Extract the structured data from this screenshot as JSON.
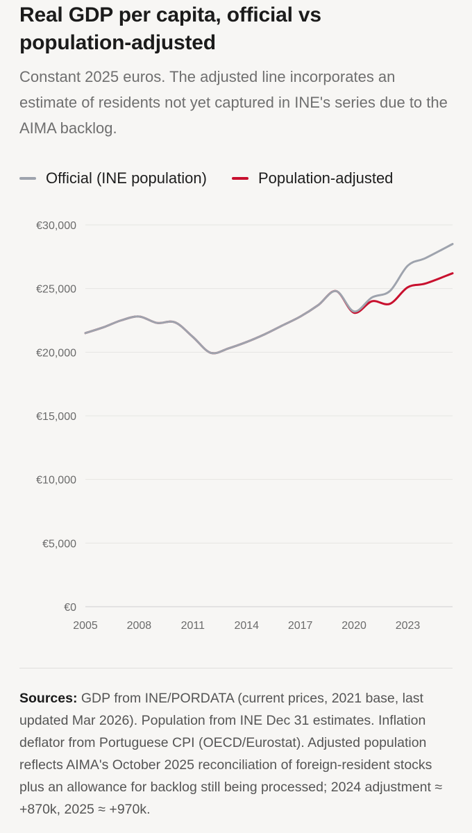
{
  "header": {
    "title": "Real GDP per capita, official vs population-adjusted",
    "subtitle": "Constant 2025 euros. The adjusted line incorporates an estimate of residents not yet captured in INE's series due to the AIMA backlog."
  },
  "legend": {
    "items": [
      {
        "label": "Official (INE population)",
        "color": "#9ea3ad"
      },
      {
        "label": "Population-adjusted",
        "color": "#c8102e"
      }
    ]
  },
  "chart_data": {
    "type": "line",
    "title": "Real GDP per capita, official vs population-adjusted",
    "xlabel": "",
    "ylabel": "",
    "xlim": [
      2005,
      2025.5
    ],
    "ylim": [
      0,
      30000
    ],
    "grid": true,
    "legend_position": "top-left",
    "x_ticks": [
      2005,
      2008,
      2011,
      2014,
      2017,
      2020,
      2023
    ],
    "y_ticks": [
      0,
      5000,
      10000,
      15000,
      20000,
      25000,
      30000
    ],
    "y_tick_labels": [
      "€0",
      "€5,000",
      "€10,000",
      "€15,000",
      "€20,000",
      "€25,000",
      "€30,000"
    ],
    "series": [
      {
        "name": "Official (INE population)",
        "color": "#9ea3ad",
        "x": [
          2005,
          2006,
          2007,
          2008,
          2009,
          2010,
          2011,
          2012,
          2013,
          2014,
          2015,
          2016,
          2017,
          2018,
          2019,
          2020,
          2021,
          2022,
          2023,
          2024,
          2025.5
        ],
        "values": [
          21500,
          21950,
          22500,
          22800,
          22300,
          22350,
          21200,
          19950,
          20300,
          20800,
          21400,
          22100,
          22800,
          23700,
          24800,
          23200,
          24300,
          24800,
          26800,
          27400,
          28500
        ]
      },
      {
        "name": "Population-adjusted",
        "color": "#c8102e",
        "x": [
          2005,
          2006,
          2007,
          2008,
          2009,
          2010,
          2011,
          2012,
          2013,
          2014,
          2015,
          2016,
          2017,
          2018,
          2019,
          2020,
          2021,
          2022,
          2023,
          2024,
          2025.5
        ],
        "values": [
          21500,
          21950,
          22500,
          22800,
          22300,
          22350,
          21200,
          19950,
          20300,
          20800,
          21400,
          22100,
          22800,
          23700,
          24800,
          23100,
          24000,
          23800,
          25100,
          25400,
          26200
        ]
      }
    ]
  },
  "sources": {
    "label": "Sources:",
    "text": " GDP from INE/PORDATA (current prices, 2021 base, last updated Mar 2026). Population from INE Dec 31 estimates. Inflation deflator from Portuguese CPI (OECD/Eurostat). Adjusted population reflects AIMA's October 2025 reconciliation of foreign-resident stocks plus an allowance for backlog still being processed; 2024 adjustment ≈ +870k, 2025 ≈ +970k."
  }
}
